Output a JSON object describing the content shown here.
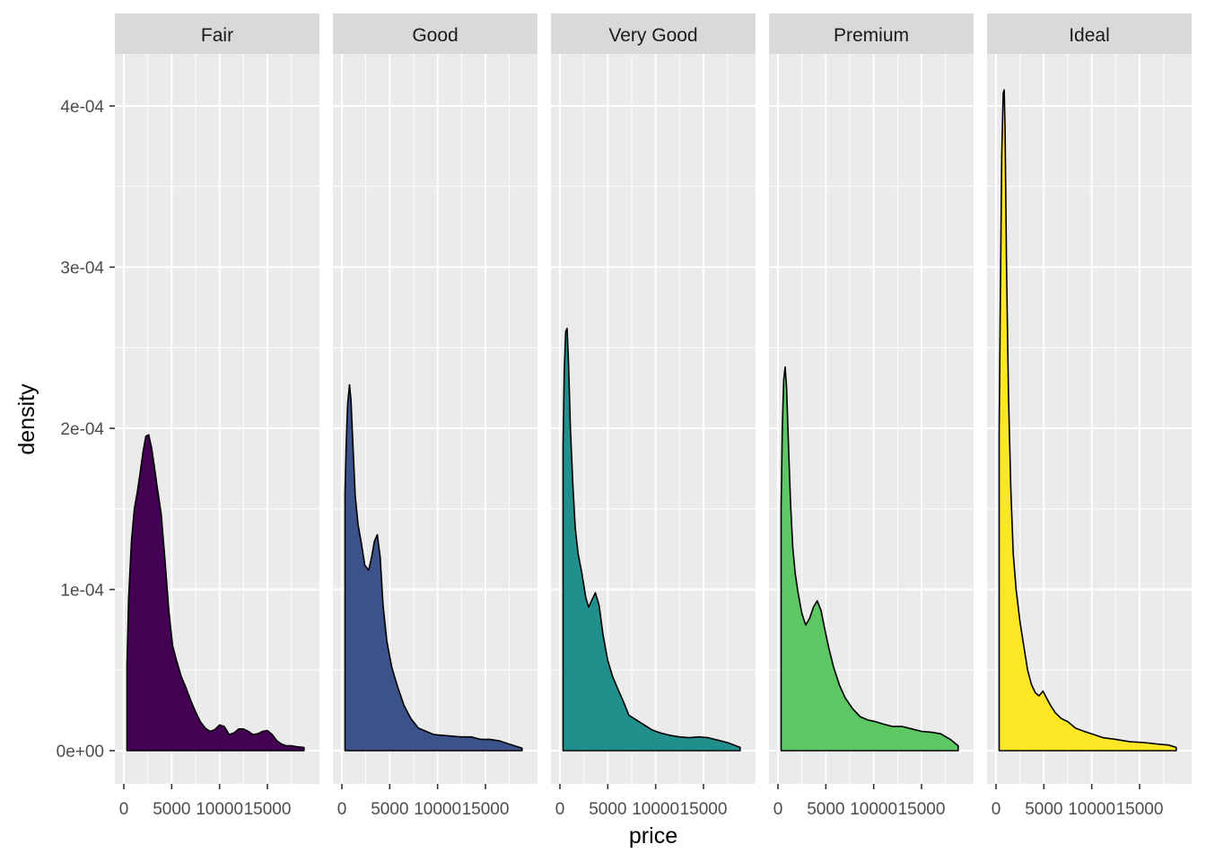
{
  "chart_data": {
    "type": "area",
    "xlabel": "price",
    "ylabel": "density",
    "xlim": [
      326,
      18823
    ],
    "ylim": [
      0,
      0.00043
    ],
    "x_ticks": [
      0,
      5000,
      10000,
      15000
    ],
    "x_tick_labels": [
      "0",
      "5000",
      "10000",
      "15000"
    ],
    "y_ticks": [
      0,
      0.0001,
      0.0002,
      0.0003,
      0.0004
    ],
    "y_tick_labels": [
      "0e+00",
      "1e-04",
      "2e-04",
      "3e-04",
      "4e-04"
    ],
    "grid": true,
    "legend": "none",
    "facets": [
      {
        "name": "Fair",
        "color": "#440154",
        "x": [
          326,
          500,
          800,
          1100,
          1400,
          1700,
          2000,
          2300,
          2600,
          2900,
          3200,
          3500,
          3900,
          4300,
          4700,
          5100,
          5500,
          6000,
          6500,
          7000,
          7500,
          8000,
          8500,
          9000,
          9500,
          10000,
          10500,
          11000,
          11500,
          12000,
          12500,
          13000,
          13500,
          14000,
          14500,
          15000,
          15500,
          16000,
          16500,
          17000,
          17500,
          18000,
          18823
        ],
        "y": [
          5.3e-05,
          9.4e-05,
          0.00013,
          0.00015,
          0.00016,
          0.000172,
          0.000185,
          0.000195,
          0.000196,
          0.000188,
          0.000176,
          0.000163,
          0.000147,
          0.000118,
          8.7e-05,
          6.5e-05,
          5.6e-05,
          4.6e-05,
          3.9e-05,
          3.1e-05,
          2.4e-05,
          1.8e-05,
          1.4e-05,
          1.2e-05,
          1.3e-05,
          1.6e-05,
          1.5e-05,
          1e-05,
          1.1e-05,
          1.35e-05,
          1.35e-05,
          1.2e-05,
          1e-05,
          1.05e-05,
          1.2e-05,
          1.25e-05,
          1e-05,
          6e-06,
          4e-06,
          3e-06,
          3e-06,
          2.5e-06,
          2e-06
        ]
      },
      {
        "name": "Good",
        "color": "#3b528b",
        "x": [
          326,
          450,
          600,
          800,
          950,
          1150,
          1400,
          1700,
          2000,
          2400,
          2800,
          3100,
          3400,
          3700,
          4000,
          4300,
          4700,
          5200,
          5800,
          6500,
          7200,
          8000,
          8800,
          9600,
          10500,
          11500,
          12500,
          13500,
          14500,
          15500,
          16500,
          17500,
          18823
        ],
        "y": [
          0.00016,
          0.00019,
          0.000215,
          0.000227,
          0.000218,
          0.00019,
          0.000158,
          0.00014,
          0.00013,
          0.000115,
          0.000112,
          0.00012,
          0.00013,
          0.000134,
          0.00012,
          9e-05,
          6.8e-05,
          5.2e-05,
          4e-05,
          2.8e-05,
          2e-05,
          1.4e-05,
          1.2e-05,
          1e-05,
          9.5e-06,
          9e-06,
          8.5e-06,
          8.5e-06,
          7e-06,
          7e-06,
          6e-06,
          4e-06,
          1.5e-06
        ]
      },
      {
        "name": "Very Good",
        "color": "#21908c",
        "x": [
          326,
          450,
          600,
          750,
          900,
          1100,
          1350,
          1600,
          1900,
          2300,
          2700,
          3000,
          3300,
          3700,
          4100,
          4500,
          5000,
          5500,
          6000,
          6600,
          7200,
          8000,
          8800,
          9600,
          10500,
          11500,
          12500,
          13500,
          14500,
          15500,
          16500,
          17500,
          18823
        ],
        "y": [
          0.00019,
          0.000235,
          0.00026,
          0.000262,
          0.00024,
          0.0002,
          0.000165,
          0.000138,
          0.000122,
          0.00011,
          9.5e-05,
          8.9e-05,
          9.3e-05,
          9.8e-05,
          9e-05,
          7.2e-05,
          5.6e-05,
          4.6e-05,
          3.9e-05,
          3.1e-05,
          2.2e-05,
          1.9e-05,
          1.6e-05,
          1.3e-05,
          1.1e-05,
          9.5e-06,
          8.5e-06,
          8e-06,
          8.5e-06,
          8e-06,
          6.5e-06,
          5e-06,
          2e-06
        ]
      },
      {
        "name": "Premium",
        "color": "#5dc863",
        "x": [
          326,
          450,
          600,
          750,
          900,
          1100,
          1300,
          1550,
          1800,
          2100,
          2500,
          2900,
          3300,
          3700,
          4100,
          4500,
          4900,
          5300,
          5800,
          6400,
          7000,
          7800,
          8600,
          9400,
          10200,
          11000,
          12000,
          13000,
          14000,
          15000,
          16000,
          17000,
          18000,
          18823
        ],
        "y": [
          0.00015,
          0.0002,
          0.00023,
          0.000238,
          0.000225,
          0.00019,
          0.000155,
          0.000126,
          0.00011,
          9.8e-05,
          8.5e-05,
          7.8e-05,
          8.2e-05,
          8.9e-05,
          9.3e-05,
          8.7e-05,
          7.5e-05,
          6.4e-05,
          5.2e-05,
          4.1e-05,
          3.3e-05,
          2.6e-05,
          2.1e-05,
          1.9e-05,
          1.8e-05,
          1.65e-05,
          1.5e-05,
          1.5e-05,
          1.35e-05,
          1.2e-05,
          1.15e-05,
          1.05e-05,
          7e-06,
          3e-06
        ]
      },
      {
        "name": "Ideal",
        "color": "#fde725",
        "x": [
          326,
          450,
          600,
          750,
          850,
          950,
          1100,
          1300,
          1550,
          1800,
          2100,
          2500,
          2900,
          3300,
          3700,
          4100,
          4500,
          4900,
          5300,
          5700,
          6200,
          6800,
          7500,
          8300,
          9200,
          10200,
          11200,
          12500,
          14000,
          15500,
          17000,
          18000,
          18823
        ],
        "y": [
          0.000197,
          0.00028,
          0.00037,
          0.000408,
          0.00041,
          0.000385,
          0.0003,
          0.00022,
          0.000162,
          0.000122,
          0.0001,
          8e-05,
          6.5e-05,
          5e-05,
          4.1e-05,
          3.6e-05,
          3.4e-05,
          3.7e-05,
          3.25e-05,
          2.8e-05,
          2.35e-05,
          2e-05,
          1.8e-05,
          1.4e-05,
          1.2e-05,
          1e-05,
          8e-06,
          7e-06,
          5.5e-06,
          5e-06,
          4e-06,
          3.5e-06,
          2e-06
        ]
      }
    ]
  }
}
